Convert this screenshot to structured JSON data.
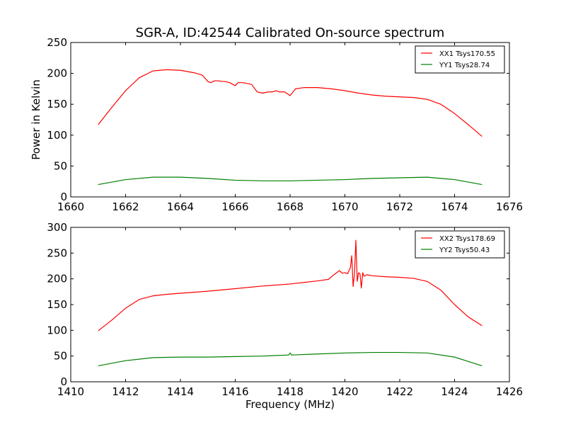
{
  "figure": {
    "title": "SGR-A, ID:42544 Calibrated On-source spectrum"
  },
  "chart_data": [
    {
      "type": "line",
      "title": "SGR-A, ID:42544 Calibrated On-source spectrum",
      "xlabel": "",
      "ylabel": "Power in Kelvin",
      "xlim": [
        1660,
        1676
      ],
      "ylim": [
        0,
        250
      ],
      "xticks": [
        1660,
        1662,
        1664,
        1666,
        1668,
        1670,
        1672,
        1674,
        1676
      ],
      "yticks": [
        0,
        50,
        100,
        150,
        200,
        250
      ],
      "grid": false,
      "legend_position": "top-right",
      "series": [
        {
          "name": "XX1 Tsys170.55",
          "color": "#ff0000",
          "x": [
            1661.0,
            1661.5,
            1662.0,
            1662.5,
            1663.0,
            1663.5,
            1664.0,
            1664.5,
            1664.8,
            1665.0,
            1665.1,
            1665.25,
            1665.4,
            1665.5,
            1665.6,
            1665.8,
            1666.0,
            1666.1,
            1666.3,
            1666.6,
            1666.8,
            1667.0,
            1667.2,
            1667.35,
            1667.5,
            1667.6,
            1667.8,
            1668.0,
            1668.2,
            1668.5,
            1669.0,
            1669.5,
            1670.0,
            1670.5,
            1671.0,
            1671.5,
            1672.0,
            1672.5,
            1673.0,
            1673.5,
            1674.0,
            1674.5,
            1675.0
          ],
          "y": [
            117,
            145,
            172,
            193,
            204,
            206,
            205,
            201,
            197,
            187,
            185,
            188,
            188,
            187,
            187,
            185,
            180,
            185,
            185,
            182,
            170,
            168,
            170,
            170,
            172,
            170,
            170,
            164,
            175,
            177,
            177,
            175,
            172,
            168,
            165,
            163,
            162,
            161,
            158,
            150,
            135,
            117,
            98
          ]
        },
        {
          "name": "YY1 Tsys28.74",
          "color": "#008000",
          "x": [
            1661.0,
            1662.0,
            1663.0,
            1664.0,
            1665.0,
            1666.0,
            1667.0,
            1668.0,
            1669.0,
            1670.0,
            1671.0,
            1672.0,
            1673.0,
            1674.0,
            1675.0
          ],
          "y": [
            20,
            28,
            32,
            32,
            30,
            27,
            26,
            26,
            27,
            28,
            30,
            31,
            32,
            28,
            20
          ]
        }
      ]
    },
    {
      "type": "line",
      "title": "",
      "xlabel": "Frequency (MHz)",
      "ylabel": "",
      "xlim": [
        1410,
        1426
      ],
      "ylim": [
        0,
        300
      ],
      "xticks": [
        1410,
        1412,
        1414,
        1416,
        1418,
        1420,
        1422,
        1424,
        1426
      ],
      "yticks": [
        0,
        50,
        100,
        150,
        200,
        250,
        300
      ],
      "grid": false,
      "legend_position": "top-right",
      "series": [
        {
          "name": "XX2 Tsys178.69",
          "color": "#ff0000",
          "x": [
            1411.0,
            1411.5,
            1412.0,
            1412.5,
            1413.0,
            1413.5,
            1414.0,
            1415.0,
            1416.0,
            1417.0,
            1418.0,
            1418.5,
            1419.0,
            1419.4,
            1419.6,
            1419.8,
            1419.9,
            1420.0,
            1420.1,
            1420.2,
            1420.25,
            1420.3,
            1420.35,
            1420.4,
            1420.45,
            1420.5,
            1420.55,
            1420.6,
            1420.65,
            1420.7,
            1420.8,
            1421.0,
            1421.5,
            1422.0,
            1422.5,
            1423.0,
            1423.5,
            1424.0,
            1424.5,
            1425.0
          ],
          "y": [
            99,
            120,
            143,
            160,
            167,
            170,
            172,
            176,
            181,
            186,
            190,
            193,
            196,
            199,
            208,
            216,
            211,
            212,
            210,
            222,
            245,
            185,
            210,
            275,
            195,
            212,
            210,
            182,
            212,
            205,
            208,
            206,
            204,
            203,
            201,
            195,
            178,
            150,
            126,
            109
          ]
        },
        {
          "name": "YY2 Tsys50.43",
          "color": "#008000",
          "x": [
            1411.0,
            1412.0,
            1413.0,
            1414.0,
            1415.0,
            1416.0,
            1417.0,
            1417.95,
            1418.0,
            1418.05,
            1419.0,
            1420.0,
            1421.0,
            1422.0,
            1423.0,
            1424.0,
            1425.0
          ],
          "y": [
            31,
            41,
            47,
            48,
            48,
            49,
            50,
            52,
            56,
            52,
            54,
            56,
            57,
            57,
            56,
            48,
            31
          ]
        }
      ]
    }
  ]
}
